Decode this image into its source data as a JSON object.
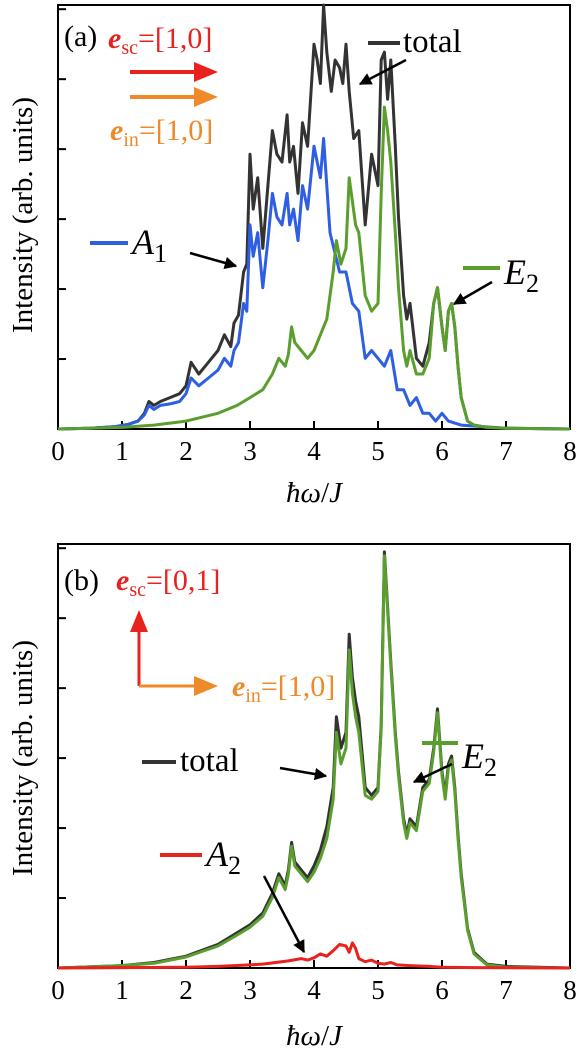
{
  "figure": {
    "panels": [
      {
        "panel_label": "(a)",
        "ylabel": "Intensity (arb. units)",
        "xlabel_parts": [
          "ħω",
          "/",
          "J"
        ],
        "polarization": {
          "sc": {
            "vec": "e",
            "sub": "sc",
            "value": "=[1,0]",
            "color": "#e8231f",
            "direction": "right"
          },
          "in": {
            "vec": "e",
            "sub": "in",
            "value": "=[1,0]",
            "color": "#ef8a2a",
            "direction": "right"
          }
        },
        "legend": [
          {
            "label": "total",
            "color": "#333333"
          },
          {
            "label_main": "A",
            "label_sub": "1",
            "color": "#2e5fe3"
          },
          {
            "label_main": "E",
            "label_sub": "2",
            "color": "#5a9e2e"
          }
        ]
      },
      {
        "panel_label": "(b)",
        "ylabel": "Intensity (arb. units)",
        "xlabel_parts": [
          "ħω",
          "/",
          "J"
        ],
        "polarization": {
          "sc": {
            "vec": "e",
            "sub": "sc",
            "value": "=[0,1]",
            "color": "#e8231f",
            "direction": "up"
          },
          "in": {
            "vec": "e",
            "sub": "in",
            "value": "=[1,0]",
            "color": "#ef8a2a",
            "direction": "right"
          }
        },
        "legend": [
          {
            "label": "total",
            "color": "#333333"
          },
          {
            "label_main": "E",
            "label_sub": "2",
            "color": "#5a9e2e"
          },
          {
            "label_main": "A",
            "label_sub": "2",
            "color": "#e8231f"
          }
        ]
      }
    ]
  },
  "chart_data": [
    {
      "type": "line",
      "panel": "(a)",
      "xlabel": "ħω/J",
      "ylabel": "Intensity (arb. units)",
      "xlim": [
        0,
        8
      ],
      "ylim": [
        0,
        5.4
      ],
      "xticks": [
        "0",
        "1",
        "2",
        "3",
        "4",
        "5",
        "6",
        "7",
        "8"
      ],
      "yticks_count": 6,
      "y_tick_labels_shown": false,
      "series": [
        {
          "name": "total",
          "color": "#333333",
          "x": [
            0,
            0.5,
            0.9,
            1.1,
            1.25,
            1.35,
            1.42,
            1.5,
            1.6,
            1.75,
            1.9,
            2.0,
            2.08,
            2.2,
            2.35,
            2.5,
            2.6,
            2.7,
            2.75,
            2.82,
            2.9,
            2.95,
            3.0,
            3.05,
            3.12,
            3.2,
            3.28,
            3.35,
            3.42,
            3.5,
            3.58,
            3.62,
            3.68,
            3.75,
            3.82,
            3.9,
            4.0,
            4.05,
            4.1,
            4.15,
            4.2,
            4.27,
            4.33,
            4.4,
            4.45,
            4.5,
            4.55,
            4.62,
            4.7,
            4.8,
            4.9,
            5.0,
            5.05,
            5.1,
            5.15,
            5.2,
            5.27,
            5.32,
            5.4,
            5.45,
            5.5,
            5.6,
            5.7,
            5.8,
            5.87,
            5.93,
            6.0,
            6.05,
            6.1,
            6.15,
            6.2,
            6.25,
            6.3,
            6.4,
            6.5,
            6.7,
            7.0,
            8.0
          ],
          "y": [
            0,
            0.01,
            0.03,
            0.06,
            0.1,
            0.2,
            0.35,
            0.3,
            0.35,
            0.4,
            0.45,
            0.55,
            0.85,
            0.7,
            0.85,
            1.0,
            1.2,
            1.05,
            1.35,
            1.45,
            2.0,
            2.1,
            3.5,
            2.8,
            3.2,
            2.3,
            3.1,
            3.8,
            3.5,
            3.4,
            4.0,
            3.4,
            3.6,
            3.0,
            3.9,
            3.6,
            4.9,
            4.7,
            4.4,
            5.4,
            4.8,
            4.3,
            4.7,
            4.6,
            4.4,
            4.9,
            4.3,
            3.7,
            3.8,
            2.6,
            3.5,
            3.1,
            4.7,
            4.8,
            4.2,
            4.7,
            3.6,
            2.7,
            1.7,
            1.4,
            1.6,
            0.9,
            0.8,
            1.1,
            1.6,
            1.8,
            1.3,
            1.0,
            1.5,
            1.6,
            1.3,
            0.8,
            0.4,
            0.1,
            0.05,
            0.02,
            0.01,
            0
          ]
        },
        {
          "name": "A1",
          "color": "#2e5fe3",
          "x": [
            0,
            0.5,
            0.9,
            1.1,
            1.25,
            1.35,
            1.42,
            1.5,
            1.6,
            1.75,
            1.9,
            2.0,
            2.08,
            2.2,
            2.35,
            2.5,
            2.6,
            2.7,
            2.75,
            2.82,
            2.9,
            2.95,
            3.0,
            3.05,
            3.12,
            3.2,
            3.28,
            3.35,
            3.42,
            3.5,
            3.58,
            3.62,
            3.68,
            3.75,
            3.82,
            3.9,
            4.0,
            4.05,
            4.1,
            4.15,
            4.25,
            4.4,
            4.5,
            4.6,
            4.7,
            4.8,
            4.9,
            5.0,
            5.1,
            5.2,
            5.3,
            5.4,
            5.5,
            5.6,
            5.7,
            5.8,
            5.9,
            6.0,
            6.1,
            6.3,
            7.0,
            8.0
          ],
          "y": [
            0,
            0.01,
            0.03,
            0.06,
            0.1,
            0.18,
            0.3,
            0.25,
            0.3,
            0.32,
            0.35,
            0.45,
            0.65,
            0.55,
            0.65,
            0.75,
            0.9,
            0.8,
            1.0,
            1.1,
            1.6,
            1.5,
            2.6,
            2.2,
            2.5,
            1.8,
            2.4,
            3.0,
            2.7,
            2.6,
            3.0,
            2.6,
            2.8,
            2.4,
            3.1,
            2.8,
            3.6,
            3.4,
            3.2,
            3.7,
            2.5,
            2.0,
            2.0,
            1.6,
            1.5,
            0.9,
            1.0,
            0.9,
            0.8,
            1.0,
            0.5,
            0.5,
            0.3,
            0.4,
            0.2,
            0.2,
            0.1,
            0.2,
            0.1,
            0.05,
            0.01,
            0
          ]
        },
        {
          "name": "E2",
          "color": "#5a9e2e",
          "x": [
            0,
            1.0,
            1.5,
            2.0,
            2.5,
            2.8,
            3.0,
            3.2,
            3.35,
            3.45,
            3.55,
            3.6,
            3.65,
            3.7,
            3.8,
            3.9,
            4.0,
            4.1,
            4.2,
            4.3,
            4.35,
            4.42,
            4.5,
            4.55,
            4.6,
            4.65,
            4.7,
            4.8,
            4.9,
            5.0,
            5.05,
            5.1,
            5.15,
            5.2,
            5.27,
            5.32,
            5.4,
            5.45,
            5.5,
            5.6,
            5.7,
            5.8,
            5.87,
            5.93,
            6.0,
            6.05,
            6.1,
            6.15,
            6.2,
            6.25,
            6.3,
            6.4,
            6.5,
            6.7,
            7.0,
            8.0
          ],
          "y": [
            0,
            0.02,
            0.05,
            0.1,
            0.2,
            0.3,
            0.4,
            0.5,
            0.7,
            0.9,
            0.8,
            0.95,
            1.3,
            1.1,
            1.0,
            0.9,
            1.0,
            1.2,
            1.4,
            2.0,
            2.4,
            2.1,
            2.3,
            3.2,
            2.9,
            2.6,
            2.5,
            1.7,
            1.5,
            1.6,
            3.0,
            4.1,
            3.8,
            3.4,
            2.5,
            1.8,
            1.0,
            0.8,
            1.0,
            0.7,
            0.7,
            0.9,
            1.6,
            1.8,
            1.3,
            1.0,
            1.5,
            1.6,
            1.3,
            0.8,
            0.4,
            0.1,
            0.05,
            0.02,
            0.01,
            0
          ]
        }
      ]
    },
    {
      "type": "line",
      "panel": "(b)",
      "xlabel": "ħω/J",
      "ylabel": "Intensity (arb. units)",
      "xlim": [
        0,
        8
      ],
      "ylim": [
        0,
        5.4
      ],
      "xticks": [
        "0",
        "1",
        "2",
        "3",
        "4",
        "5",
        "6",
        "7",
        "8"
      ],
      "yticks_count": 6,
      "y_tick_labels_shown": false,
      "series": [
        {
          "name": "total",
          "color": "#333333",
          "x": [
            0,
            1.0,
            1.5,
            2.0,
            2.5,
            2.8,
            3.0,
            3.2,
            3.35,
            3.45,
            3.55,
            3.6,
            3.65,
            3.7,
            3.8,
            3.9,
            4.0,
            4.1,
            4.2,
            4.3,
            4.35,
            4.42,
            4.5,
            4.55,
            4.6,
            4.65,
            4.7,
            4.8,
            4.9,
            5.0,
            5.05,
            5.1,
            5.15,
            5.2,
            5.27,
            5.32,
            5.4,
            5.45,
            5.5,
            5.6,
            5.7,
            5.8,
            5.87,
            5.93,
            6.0,
            6.05,
            6.1,
            6.15,
            6.2,
            6.25,
            6.3,
            6.4,
            6.5,
            6.7,
            7.0,
            8.0
          ],
          "y": [
            0,
            0.03,
            0.07,
            0.15,
            0.3,
            0.45,
            0.55,
            0.7,
            0.95,
            1.2,
            1.05,
            1.25,
            1.6,
            1.35,
            1.25,
            1.15,
            1.3,
            1.5,
            1.8,
            2.3,
            3.2,
            2.8,
            3.0,
            4.25,
            3.7,
            3.4,
            3.2,
            2.3,
            2.2,
            2.3,
            3.1,
            5.3,
            4.6,
            3.9,
            3.0,
            2.5,
            1.9,
            1.7,
            1.9,
            1.8,
            2.3,
            2.4,
            2.8,
            3.3,
            2.5,
            2.2,
            2.6,
            2.7,
            2.3,
            1.7,
            1.2,
            0.5,
            0.2,
            0.05,
            0.02,
            0
          ]
        },
        {
          "name": "E2",
          "color": "#5a9e2e",
          "x": [
            0,
            1.0,
            1.5,
            2.0,
            2.5,
            2.8,
            3.0,
            3.2,
            3.35,
            3.45,
            3.55,
            3.6,
            3.65,
            3.7,
            3.8,
            3.9,
            4.0,
            4.1,
            4.2,
            4.3,
            4.35,
            4.42,
            4.5,
            4.55,
            4.6,
            4.65,
            4.7,
            4.8,
            4.9,
            5.0,
            5.05,
            5.1,
            5.15,
            5.2,
            5.27,
            5.32,
            5.4,
            5.45,
            5.5,
            5.6,
            5.7,
            5.8,
            5.87,
            5.93,
            6.0,
            6.05,
            6.1,
            6.15,
            6.2,
            6.25,
            6.3,
            6.4,
            6.5,
            6.7,
            7.0,
            8.0
          ],
          "y": [
            0,
            0.03,
            0.06,
            0.14,
            0.28,
            0.42,
            0.52,
            0.66,
            0.9,
            1.15,
            1.0,
            1.2,
            1.55,
            1.3,
            1.2,
            1.1,
            1.22,
            1.4,
            1.65,
            2.15,
            3.0,
            2.6,
            2.8,
            4.05,
            3.5,
            3.2,
            3.0,
            2.2,
            2.15,
            2.25,
            3.05,
            5.25,
            4.55,
            3.85,
            2.95,
            2.45,
            1.85,
            1.65,
            1.85,
            1.75,
            2.25,
            2.35,
            2.75,
            3.25,
            2.45,
            2.15,
            2.55,
            2.65,
            2.25,
            1.65,
            1.15,
            0.48,
            0.18,
            0.04,
            0.01,
            0
          ]
        },
        {
          "name": "A2",
          "color": "#e8231f",
          "x": [
            0,
            2.0,
            2.5,
            3.0,
            3.2,
            3.4,
            3.6,
            3.8,
            3.9,
            4.0,
            4.1,
            4.2,
            4.3,
            4.4,
            4.5,
            4.55,
            4.6,
            4.65,
            4.7,
            4.8,
            4.9,
            5.0,
            5.1,
            5.2,
            5.3,
            5.5,
            5.8,
            6.0,
            6.5,
            8.0
          ],
          "y": [
            0,
            0.01,
            0.02,
            0.04,
            0.05,
            0.07,
            0.09,
            0.12,
            0.1,
            0.13,
            0.18,
            0.15,
            0.22,
            0.3,
            0.28,
            0.2,
            0.32,
            0.25,
            0.12,
            0.08,
            0.1,
            0.06,
            0.05,
            0.07,
            0.04,
            0.03,
            0.02,
            0.01,
            0.005,
            0
          ]
        }
      ]
    }
  ]
}
